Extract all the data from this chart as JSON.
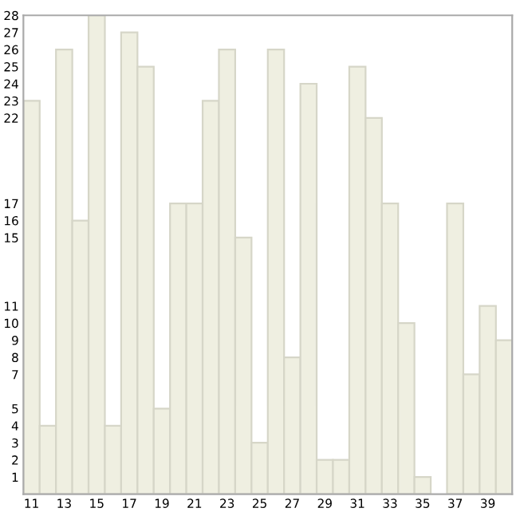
{
  "chart_data": {
    "type": "bar",
    "categories": [
      "11",
      null,
      "13",
      null,
      "15",
      null,
      "17",
      null,
      "19",
      null,
      "21",
      null,
      "23",
      null,
      "25",
      null,
      "27",
      null,
      "29",
      null,
      "31",
      null,
      "33",
      null,
      "35",
      null,
      "37",
      null,
      "39",
      null
    ],
    "values": [
      23,
      4,
      26,
      16,
      28,
      4,
      27,
      25,
      5,
      17,
      17,
      23,
      26,
      15,
      3,
      26,
      8,
      24,
      2,
      2,
      25,
      22,
      17,
      10,
      1,
      0,
      17,
      7,
      11,
      9
    ],
    "color": "#efefe1",
    "ylim": [
      0,
      28
    ],
    "yticks": [
      1,
      2,
      3,
      4,
      5,
      7,
      8,
      9,
      10,
      11,
      15,
      16,
      17,
      22,
      23,
      24,
      25,
      26,
      27,
      28
    ],
    "grid": false
  }
}
